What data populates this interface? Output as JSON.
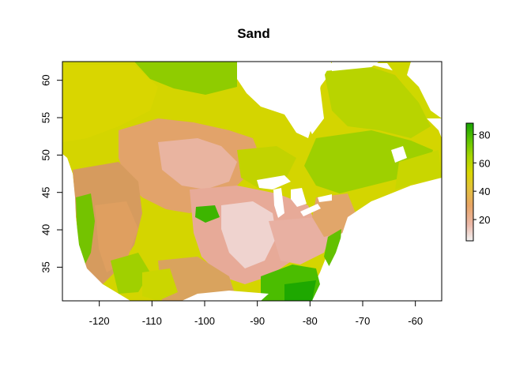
{
  "map": {
    "title": "Sand",
    "x_axis": {
      "range": [
        -127,
        -55
      ],
      "ticks": [
        -120,
        -110,
        -100,
        -90,
        -80,
        -70,
        -60
      ],
      "tick_labels": [
        "-120",
        "-110",
        "-100",
        "-90",
        "-80",
        "-70",
        "-60"
      ]
    },
    "y_axis": {
      "range": [
        30.5,
        62.5
      ],
      "ticks": [
        35,
        40,
        45,
        50,
        55,
        60
      ],
      "tick_labels": [
        "35",
        "40",
        "45",
        "50",
        "55",
        "60"
      ]
    },
    "legend": {
      "range": [
        5,
        88
      ],
      "ticks": [
        20,
        40,
        60,
        80
      ],
      "tick_labels": [
        "20",
        "40",
        "60",
        "80"
      ],
      "colors": [
        "#f2f2f2",
        "#ebb8a8",
        "#e8a566",
        "#e3c23a",
        "#d9d700",
        "#a6d600",
        "#5cc400",
        "#17a300"
      ]
    }
  }
}
